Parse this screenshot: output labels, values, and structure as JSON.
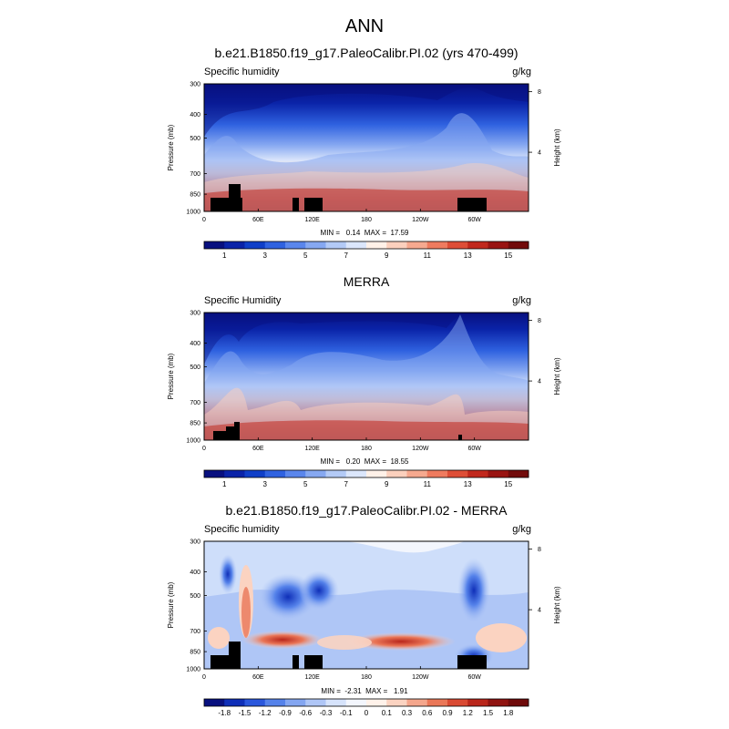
{
  "page": {
    "title": "ANN"
  },
  "axes": {
    "pressure_ticks": [
      "300",
      "400",
      "500",
      "700",
      "850",
      "1000"
    ],
    "pressure_values": [
      300,
      400,
      500,
      700,
      850,
      1000
    ],
    "lon_ticks": [
      "0",
      "60E",
      "120E",
      "180",
      "120W",
      "60W"
    ],
    "lon_values": [
      0,
      60,
      120,
      180,
      240,
      300
    ],
    "height_ticks": [
      "8",
      "4"
    ],
    "height_values_km": [
      8,
      4
    ],
    "ylabel": "Pressure (mb)",
    "right_label": "Height (km)"
  },
  "colors": {
    "qv_palette": [
      "#08107f",
      "#0a23a8",
      "#0f3fc8",
      "#2f62e0",
      "#5a86ec",
      "#86a8f1",
      "#b3caf6",
      "#dbe6fb",
      "#fff1e8",
      "#fbd0bd",
      "#f6a98f",
      "#ef7b5f",
      "#de4e37",
      "#c1281d",
      "#991412",
      "#720b0b"
    ],
    "diff_palette": [
      "#08107f",
      "#0f2fb8",
      "#2a57dc",
      "#5582ea",
      "#84a6f1",
      "#afc6f6",
      "#d6e3fb",
      "#f3f6fd",
      "#fff2ea",
      "#fbd3c1",
      "#f4a68c",
      "#ea7758",
      "#d94a33",
      "#b9261b",
      "#8f1310",
      "#6e0a0a"
    ]
  },
  "chart_data": [
    {
      "type": "heatmap",
      "title": "b.e21.B1850.f19_g17.PaleoCalibr.PI.02 (yrs 470-499)",
      "left_label": "Specific humidity",
      "units": "g/kg",
      "stats": "MIN =   0.14  MAX =  17.59",
      "min": 0.14,
      "max": 17.59,
      "colorbar_labels": [
        "1",
        "3",
        "5",
        "7",
        "9",
        "11",
        "13",
        "15"
      ],
      "colorbar_levels": [
        1,
        3,
        5,
        7,
        9,
        11,
        13,
        15
      ]
    },
    {
      "type": "heatmap",
      "title": "MERRA",
      "left_label": "Specific Humidity",
      "units": "g/kg",
      "stats": "MIN =   0.20  MAX =  18.55",
      "min": 0.2,
      "max": 18.55,
      "colorbar_labels": [
        "1",
        "3",
        "5",
        "7",
        "9",
        "11",
        "13",
        "15"
      ],
      "colorbar_levels": [
        1,
        3,
        5,
        7,
        9,
        11,
        13,
        15
      ]
    },
    {
      "type": "heatmap",
      "title": "b.e21.B1850.f19_g17.PaleoCalibr.PI.02 - MERRA",
      "left_label": "Specific humidity",
      "units": "g/kg",
      "stats": "MIN =  -2.31  MAX =   1.91",
      "min": -2.31,
      "max": 1.91,
      "colorbar_labels": [
        "-1.8",
        "-1.5",
        "-1.2",
        "-0.9",
        "-0.6",
        "-0.3",
        "-0.1",
        "0",
        "0.1",
        "0.3",
        "0.6",
        "0.9",
        "1.2",
        "1.5",
        "1.8"
      ],
      "colorbar_levels": [
        -1.8,
        -1.5,
        -1.2,
        -0.9,
        -0.6,
        -0.3,
        -0.1,
        0,
        0.1,
        0.3,
        0.6,
        0.9,
        1.2,
        1.5,
        1.8
      ]
    }
  ]
}
